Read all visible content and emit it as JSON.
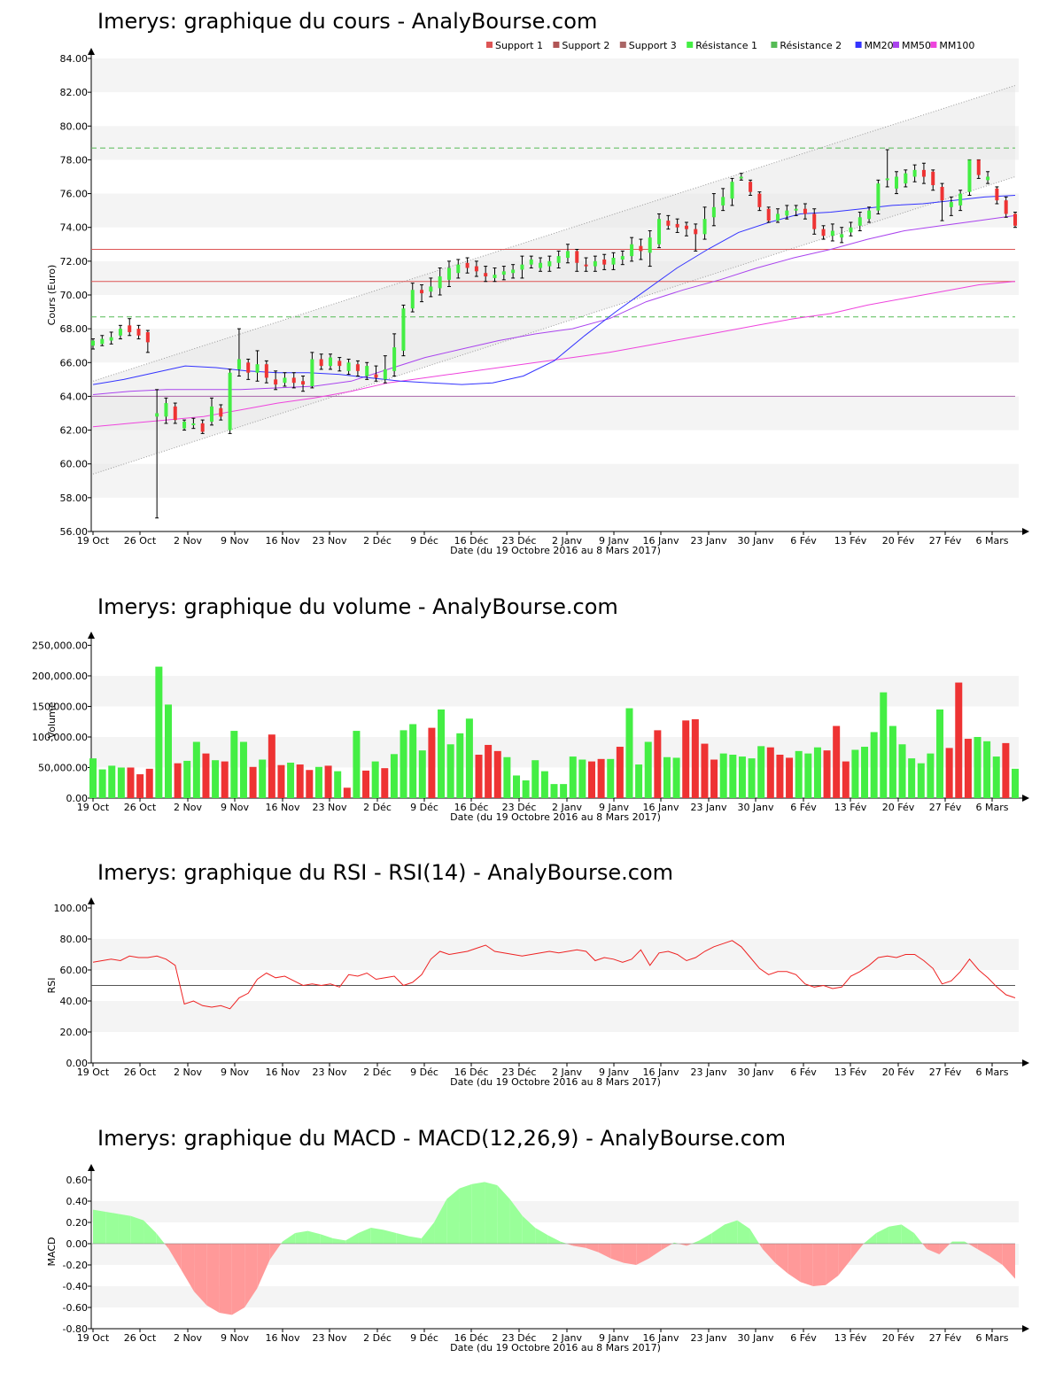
{
  "colors": {
    "up": "#44ee44",
    "down": "#ee3333",
    "mm20": "#3333ff",
    "mm50": "#aa44ee",
    "mm100": "#ee44dd",
    "support": "#dd5555",
    "resistance": "#55bb55",
    "band": "#f4f4f4",
    "rsi": "#ee2222",
    "macd_pos": "#99ff99",
    "macd_neg": "#ff9999"
  },
  "x_ticks": [
    "19 Oct",
    "26 Oct",
    "2 Nov",
    "9 Nov",
    "16 Nov",
    "23 Nov",
    "2 Déc",
    "9 Déc",
    "16 Déc",
    "23 Déc",
    "2 Janv",
    "9 Janv",
    "16 Janv",
    "23 Janv",
    "30 Janv",
    "6 Fév",
    "13 Fév",
    "20 Fév",
    "27 Fév",
    "6 Mars"
  ],
  "x_title": "Date (du 19 Octobre 2016 au 8 Mars 2017)",
  "price": {
    "title": "Imerys: graphique du cours - AnalyBourse.com",
    "ylabel": "Cours (Euro)",
    "y_ticks": [
      "56.00",
      "58.00",
      "60.00",
      "62.00",
      "64.00",
      "66.00",
      "68.00",
      "70.00",
      "72.00",
      "74.00",
      "76.00",
      "78.00",
      "80.00",
      "82.00",
      "84.00"
    ],
    "legend": [
      "Support 1",
      "Support 2",
      "Support 3",
      "Résistance 1",
      "Résistance 2",
      "MM20",
      "MM50",
      "MM100"
    ]
  },
  "volume": {
    "title": "Imerys: graphique du volume - AnalyBourse.com",
    "ylabel": "Volume",
    "y_ticks": [
      "0.00",
      "50,000.00",
      "100,000.00",
      "150,000.00",
      "200,000.00",
      "250,000.00"
    ]
  },
  "rsi": {
    "title": "Imerys: graphique du RSI - RSI(14) - AnalyBourse.com",
    "ylabel": "RSI",
    "y_ticks": [
      "0.00",
      "20.00",
      "40.00",
      "60.00",
      "80.00",
      "100.00"
    ]
  },
  "macd": {
    "title": "Imerys: graphique du MACD - MACD(12,26,9) - AnalyBourse.com",
    "ylabel": "MACD",
    "y_ticks": [
      "-0.80",
      "-0.60",
      "-0.40",
      "-0.20",
      "0.00",
      "0.20",
      "0.40",
      "0.60"
    ]
  },
  "chart_data": [
    {
      "type": "candlestick",
      "title": "Imerys: graphique du cours - AnalyBourse.com",
      "ylabel": "Cours (Euro)",
      "xlabel": "Date (du 19 Octobre 2016 au 8 Mars 2017)",
      "ylim": [
        56,
        84
      ],
      "candles": [
        [
          67.0,
          67.3,
          66.8,
          67.4
        ],
        [
          67.1,
          67.4,
          67.0,
          67.6
        ],
        [
          67.3,
          67.5,
          67.1,
          67.8
        ],
        [
          67.6,
          68.0,
          67.4,
          68.2
        ],
        [
          68.2,
          67.8,
          67.6,
          68.6
        ],
        [
          68.0,
          67.6,
          67.4,
          68.2
        ],
        [
          67.8,
          67.2,
          66.6,
          67.9
        ],
        [
          62.8,
          63.0,
          56.8,
          64.4
        ],
        [
          62.8,
          63.6,
          62.4,
          63.9
        ],
        [
          63.4,
          62.6,
          62.4,
          63.6
        ],
        [
          62.1,
          62.5,
          62.0,
          62.6
        ],
        [
          62.3,
          62.4,
          62.1,
          62.7
        ],
        [
          62.4,
          61.9,
          61.8,
          62.6
        ],
        [
          62.5,
          63.4,
          62.3,
          63.9
        ],
        [
          63.3,
          62.8,
          62.6,
          63.5
        ],
        [
          62.0,
          65.4,
          61.8,
          65.6
        ],
        [
          65.6,
          66.2,
          65.2,
          68.0
        ],
        [
          66.0,
          65.4,
          65.0,
          66.2
        ],
        [
          65.4,
          65.9,
          64.9,
          66.7
        ],
        [
          65.9,
          65.1,
          64.8,
          66.1
        ],
        [
          65.0,
          64.7,
          64.4,
          65.5
        ],
        [
          64.8,
          65.1,
          64.6,
          65.4
        ],
        [
          65.1,
          64.8,
          64.5,
          65.4
        ],
        [
          64.9,
          64.7,
          64.3,
          65.2
        ],
        [
          64.6,
          66.2,
          64.5,
          66.6
        ],
        [
          66.2,
          65.8,
          65.6,
          66.5
        ],
        [
          65.8,
          66.3,
          65.6,
          66.5
        ],
        [
          66.1,
          65.8,
          65.5,
          66.3
        ],
        [
          65.5,
          66.0,
          65.3,
          66.2
        ],
        [
          65.9,
          65.5,
          65.2,
          66.1
        ],
        [
          65.2,
          65.8,
          65.0,
          66.0
        ],
        [
          65.3,
          65.1,
          64.9,
          65.8
        ],
        [
          65.0,
          65.6,
          64.8,
          66.4
        ],
        [
          65.5,
          66.9,
          65.2,
          67.7
        ],
        [
          66.7,
          69.2,
          66.4,
          69.4
        ],
        [
          69.2,
          70.3,
          69.0,
          70.7
        ],
        [
          70.3,
          70.1,
          69.6,
          70.6
        ],
        [
          70.2,
          70.5,
          69.9,
          71.0
        ],
        [
          70.4,
          71.1,
          70.0,
          71.6
        ],
        [
          70.9,
          71.6,
          70.5,
          72.0
        ],
        [
          71.3,
          71.8,
          71.0,
          72.1
        ],
        [
          71.9,
          71.6,
          71.3,
          72.2
        ],
        [
          71.7,
          71.4,
          71.1,
          72.0
        ],
        [
          71.3,
          71.1,
          70.8,
          71.7
        ],
        [
          71.0,
          71.2,
          70.8,
          71.6
        ],
        [
          71.2,
          71.4,
          70.9,
          71.7
        ],
        [
          71.3,
          71.5,
          71.0,
          71.8
        ],
        [
          71.5,
          71.8,
          71.0,
          72.3
        ],
        [
          71.8,
          72.1,
          71.6,
          72.3
        ],
        [
          71.6,
          71.9,
          71.4,
          72.2
        ],
        [
          71.7,
          72.0,
          71.4,
          72.3
        ],
        [
          71.9,
          72.3,
          71.6,
          72.6
        ],
        [
          72.2,
          72.6,
          71.9,
          73.0
        ],
        [
          72.6,
          71.9,
          71.4,
          72.7
        ],
        [
          71.8,
          71.7,
          71.4,
          72.2
        ],
        [
          71.7,
          72.0,
          71.4,
          72.3
        ],
        [
          72.1,
          71.8,
          71.5,
          72.4
        ],
        [
          71.8,
          72.2,
          71.5,
          72.5
        ],
        [
          72.1,
          72.3,
          71.8,
          72.6
        ],
        [
          72.3,
          73.0,
          72.0,
          73.4
        ],
        [
          72.9,
          72.6,
          72.1,
          73.3
        ],
        [
          72.5,
          73.4,
          71.7,
          73.8
        ],
        [
          73.0,
          74.5,
          72.8,
          74.8
        ],
        [
          74.4,
          74.1,
          73.9,
          74.7
        ],
        [
          74.2,
          74.0,
          73.7,
          74.5
        ],
        [
          74.1,
          73.9,
          73.5,
          74.3
        ],
        [
          73.9,
          73.6,
          72.6,
          74.2
        ],
        [
          73.6,
          74.5,
          73.3,
          75.2
        ],
        [
          74.6,
          75.2,
          74.1,
          76.0
        ],
        [
          75.3,
          75.8,
          75.0,
          76.3
        ],
        [
          75.7,
          76.7,
          75.3,
          76.9
        ],
        [
          76.9,
          77.0,
          76.8,
          77.2
        ],
        [
          76.7,
          76.1,
          75.9,
          76.8
        ],
        [
          76.0,
          75.2,
          75.0,
          76.1
        ],
        [
          75.1,
          74.4,
          74.3,
          75.2
        ],
        [
          74.4,
          74.8,
          74.3,
          75.1
        ],
        [
          74.7,
          75.0,
          74.5,
          75.3
        ],
        [
          75.0,
          75.1,
          74.7,
          75.3
        ],
        [
          75.1,
          74.8,
          74.5,
          75.4
        ],
        [
          74.8,
          73.9,
          73.6,
          75.1
        ],
        [
          73.9,
          73.5,
          73.3,
          74.1
        ],
        [
          73.5,
          73.8,
          73.2,
          74.2
        ],
        [
          73.4,
          73.6,
          73.1,
          74.0
        ],
        [
          73.7,
          74.0,
          73.5,
          74.3
        ],
        [
          74.1,
          74.6,
          73.8,
          74.9
        ],
        [
          74.5,
          75.0,
          74.3,
          75.2
        ],
        [
          75.0,
          76.6,
          74.8,
          76.8
        ],
        [
          76.8,
          76.9,
          76.4,
          78.6
        ],
        [
          76.3,
          77.0,
          76.0,
          77.3
        ],
        [
          76.6,
          77.2,
          76.4,
          77.4
        ],
        [
          77.0,
          77.4,
          76.7,
          77.7
        ],
        [
          77.4,
          77.0,
          76.6,
          77.8
        ],
        [
          77.3,
          76.5,
          76.2,
          77.4
        ],
        [
          76.4,
          75.6,
          74.4,
          76.6
        ],
        [
          75.2,
          75.5,
          74.7,
          75.8
        ],
        [
          75.3,
          76.0,
          75.0,
          76.2
        ],
        [
          76.1,
          78.0,
          75.9,
          78.0
        ],
        [
          78.0,
          77.1,
          76.9,
          78.0
        ],
        [
          76.8,
          77.0,
          76.6,
          77.3
        ],
        [
          76.3,
          75.6,
          75.4,
          76.4
        ],
        [
          75.6,
          74.8,
          74.6,
          75.8
        ],
        [
          74.8,
          74.1,
          74.0,
          74.9
        ]
      ],
      "ma20": [
        64.7,
        65.0,
        65.4,
        65.8,
        65.7,
        65.5,
        65.4,
        65.4,
        65.3,
        65.1,
        64.9,
        64.8,
        64.7,
        64.8,
        65.2,
        66.1,
        67.6,
        69.0,
        70.3,
        71.6,
        72.7,
        73.7,
        74.3,
        74.8,
        74.9,
        75.1,
        75.3,
        75.4,
        75.6,
        75.8,
        75.9
      ],
      "ma50": [
        64.1,
        64.3,
        64.4,
        64.4,
        64.4,
        64.5,
        64.6,
        64.9,
        65.6,
        66.3,
        66.8,
        67.3,
        67.7,
        68.0,
        68.6,
        69.6,
        70.3,
        70.9,
        71.6,
        72.2,
        72.7,
        73.3,
        73.8,
        74.1,
        74.4,
        74.7
      ],
      "ma100": [
        62.2,
        62.4,
        62.6,
        62.8,
        63.2,
        63.6,
        63.9,
        64.3,
        64.8,
        65.1,
        65.4,
        65.7,
        66.0,
        66.3,
        66.6,
        67.0,
        67.4,
        67.8,
        68.2,
        68.6,
        68.9,
        69.4,
        69.8,
        70.2,
        70.6,
        70.8
      ],
      "support": [
        72.7,
        70.8,
        64.0
      ],
      "resistance": [
        78.7,
        68.7
      ]
    },
    {
      "type": "bar",
      "title": "Imerys: graphique du volume - AnalyBourse.com",
      "ylabel": "Volume",
      "ylim": [
        0,
        260000
      ],
      "values": [
        65000,
        47000,
        53000,
        50000,
        50000,
        39000,
        48000,
        215000,
        153000,
        57000,
        61000,
        92000,
        73000,
        62000,
        60000,
        110000,
        92000,
        51000,
        63000,
        104000,
        54000,
        58000,
        55000,
        46000,
        51000,
        53000,
        44000,
        17000,
        110000,
        45000,
        60000,
        49000,
        72000,
        111000,
        121000,
        78000,
        115000,
        145000,
        88000,
        106000,
        130000,
        71000,
        87000,
        77000,
        67000,
        37000,
        29000,
        62000,
        44000,
        23000,
        23000,
        68000,
        63000,
        60000,
        64000,
        64000,
        84000,
        147000,
        55000,
        92000,
        111000,
        67000,
        66000,
        127000,
        129000,
        89000,
        63000,
        73000,
        71000,
        68000,
        65000,
        85000,
        83000,
        71000,
        66000,
        77000,
        73000,
        83000,
        78000,
        118000,
        60000,
        79000,
        84000,
        108000,
        173000,
        118000,
        88000,
        65000,
        57000,
        73000,
        145000,
        82000,
        189000,
        97000,
        100000,
        93000,
        68000,
        90000,
        48000
      ]
    },
    {
      "type": "line",
      "title": "Imerys: graphique du RSI - RSI(14) - AnalyBourse.com",
      "ylabel": "RSI",
      "ylim": [
        0,
        100
      ],
      "reference": 50,
      "values": [
        65,
        66,
        67,
        66,
        69,
        68,
        68,
        69,
        67,
        63,
        38,
        40,
        37,
        36,
        37,
        35,
        42,
        45,
        54,
        58,
        55,
        56,
        53,
        50,
        51,
        50,
        51,
        49,
        57,
        56,
        58,
        54,
        55,
        56,
        50,
        52,
        57,
        67,
        72,
        70,
        71,
        72,
        74,
        76,
        72,
        71,
        70,
        69,
        70,
        71,
        72,
        71,
        72,
        73,
        72,
        66,
        68,
        67,
        65,
        67,
        73,
        63,
        71,
        72,
        70,
        66,
        68,
        72,
        75,
        77,
        79,
        75,
        68,
        61,
        57,
        59,
        59,
        57,
        51,
        49,
        50,
        48,
        49,
        56,
        59,
        63,
        68,
        69,
        68,
        70,
        70,
        66,
        61,
        51,
        53,
        59,
        67,
        60,
        55,
        49,
        44,
        42
      ]
    },
    {
      "type": "area",
      "title": "Imerys: graphique du MACD - MACD(12,26,9) - AnalyBourse.com",
      "ylabel": "MACD",
      "ylim": [
        -0.8,
        0.65
      ],
      "values": [
        0.32,
        0.3,
        0.28,
        0.26,
        0.22,
        0.1,
        -0.05,
        -0.25,
        -0.45,
        -0.58,
        -0.65,
        -0.67,
        -0.6,
        -0.42,
        -0.15,
        0.02,
        0.1,
        0.12,
        0.09,
        0.05,
        0.03,
        0.1,
        0.15,
        0.13,
        0.1,
        0.07,
        0.05,
        0.2,
        0.42,
        0.52,
        0.56,
        0.58,
        0.55,
        0.42,
        0.26,
        0.15,
        0.08,
        0.02,
        -0.02,
        -0.04,
        -0.08,
        -0.14,
        -0.18,
        -0.2,
        -0.14,
        -0.06,
        0.01,
        -0.02,
        0.03,
        0.1,
        0.18,
        0.22,
        0.14,
        -0.05,
        -0.18,
        -0.28,
        -0.36,
        -0.4,
        -0.39,
        -0.3,
        -0.15,
        0.0,
        0.1,
        0.16,
        0.18,
        0.1,
        -0.05,
        -0.1,
        0.02,
        0.02,
        -0.05,
        -0.12,
        -0.2,
        -0.33
      ]
    }
  ]
}
